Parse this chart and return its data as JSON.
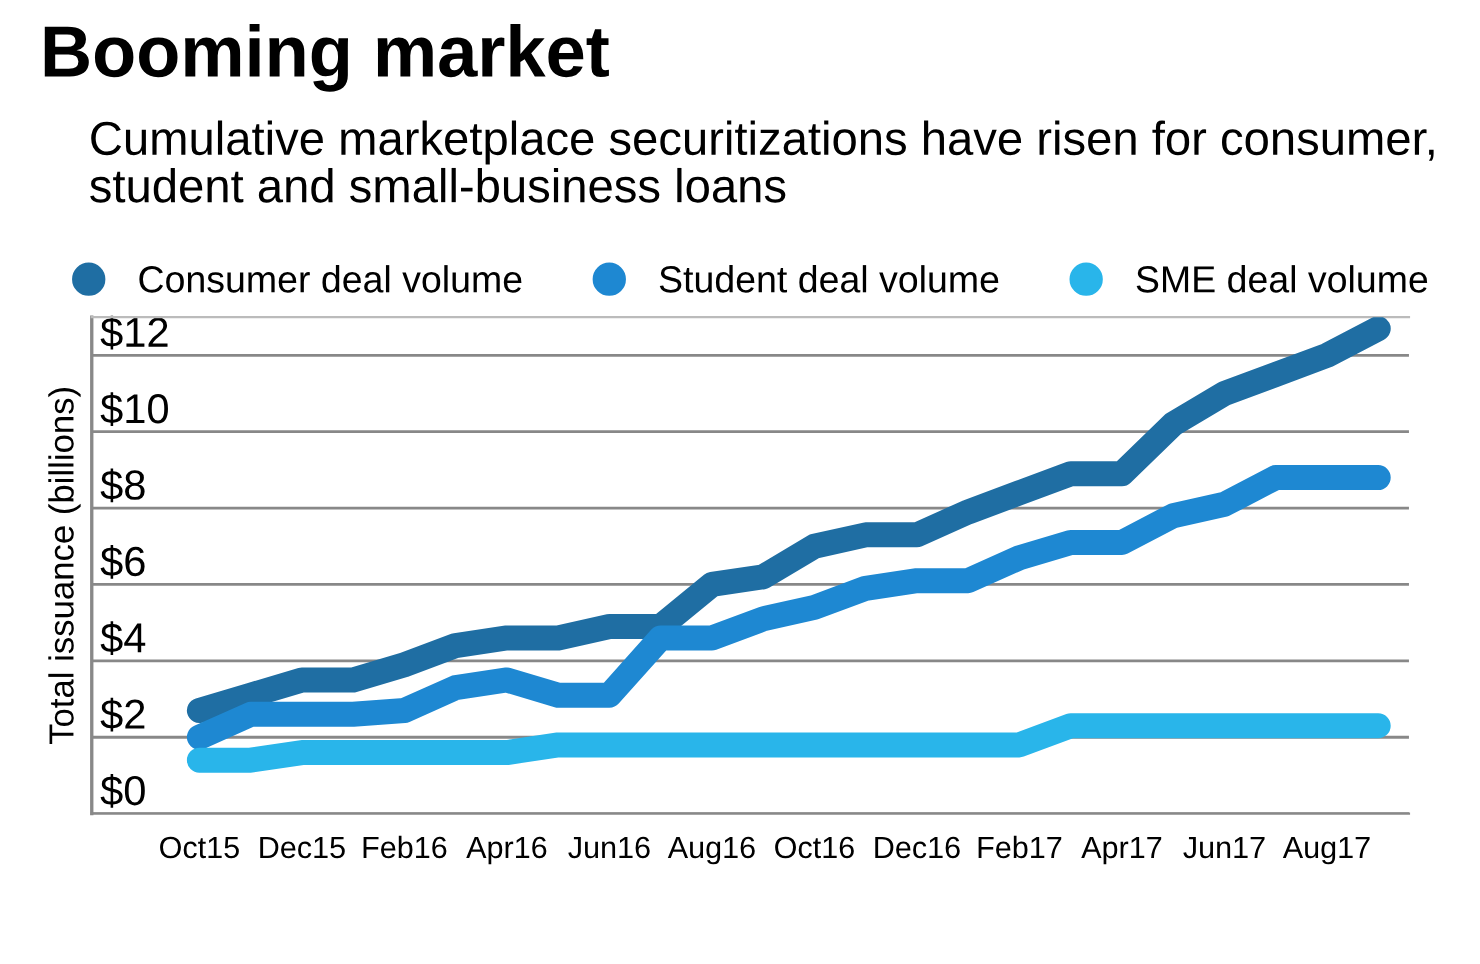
{
  "chart_data": {
    "type": "line",
    "title": "Booming market",
    "subtitle": "Cumulative marketplace securitizations have risen for consumer, student and small-business loans",
    "ylabel": "Total issuance (billions)",
    "categories": [
      "Oct15",
      null,
      "Dec15",
      null,
      "Feb16",
      null,
      "Apr16",
      null,
      "Jun16",
      null,
      "Aug16",
      null,
      "Oct16",
      null,
      "Dec16",
      null,
      "Feb17",
      null,
      "Apr17",
      null,
      "Jun17",
      null,
      "Aug17",
      null
    ],
    "series": [
      {
        "name": "Consumer deal volume",
        "color": "#1f6ea3",
        "values": [
          2.7,
          3.1,
          3.5,
          3.5,
          3.9,
          4.4,
          4.6,
          4.6,
          4.9,
          4.9,
          6.0,
          6.2,
          7.0,
          7.3,
          7.3,
          7.9,
          8.4,
          8.9,
          8.9,
          10.2,
          11.0,
          11.5,
          12.0,
          12.7
        ]
      },
      {
        "name": "Student deal volume",
        "color": "#1e88d2",
        "values": [
          2.0,
          2.6,
          2.6,
          2.6,
          2.7,
          3.3,
          3.5,
          3.1,
          3.1,
          4.6,
          4.6,
          5.1,
          5.4,
          5.9,
          6.1,
          6.1,
          6.7,
          7.1,
          7.1,
          7.8,
          8.1,
          8.8,
          8.8,
          8.8
        ]
      },
      {
        "name": "SME deal volume",
        "color": "#29b5ea",
        "values": [
          1.4,
          1.4,
          1.6,
          1.6,
          1.6,
          1.6,
          1.6,
          1.8,
          1.8,
          1.8,
          1.8,
          1.8,
          1.8,
          1.8,
          1.8,
          1.8,
          1.8,
          2.3,
          2.3,
          2.3,
          2.3,
          2.3,
          2.3,
          2.3
        ]
      }
    ],
    "ylim": [
      0,
      13
    ],
    "yticks": [
      {
        "value": 0,
        "label": "$0"
      },
      {
        "value": 2,
        "label": "$2"
      },
      {
        "value": 4,
        "label": "$4"
      },
      {
        "value": 6,
        "label": "$6"
      },
      {
        "value": 8,
        "label": "$8"
      },
      {
        "value": 10,
        "label": "$10"
      },
      {
        "value": 12,
        "label": "$12"
      }
    ],
    "grid": "y",
    "legend": "top",
    "line_style": "solid"
  }
}
